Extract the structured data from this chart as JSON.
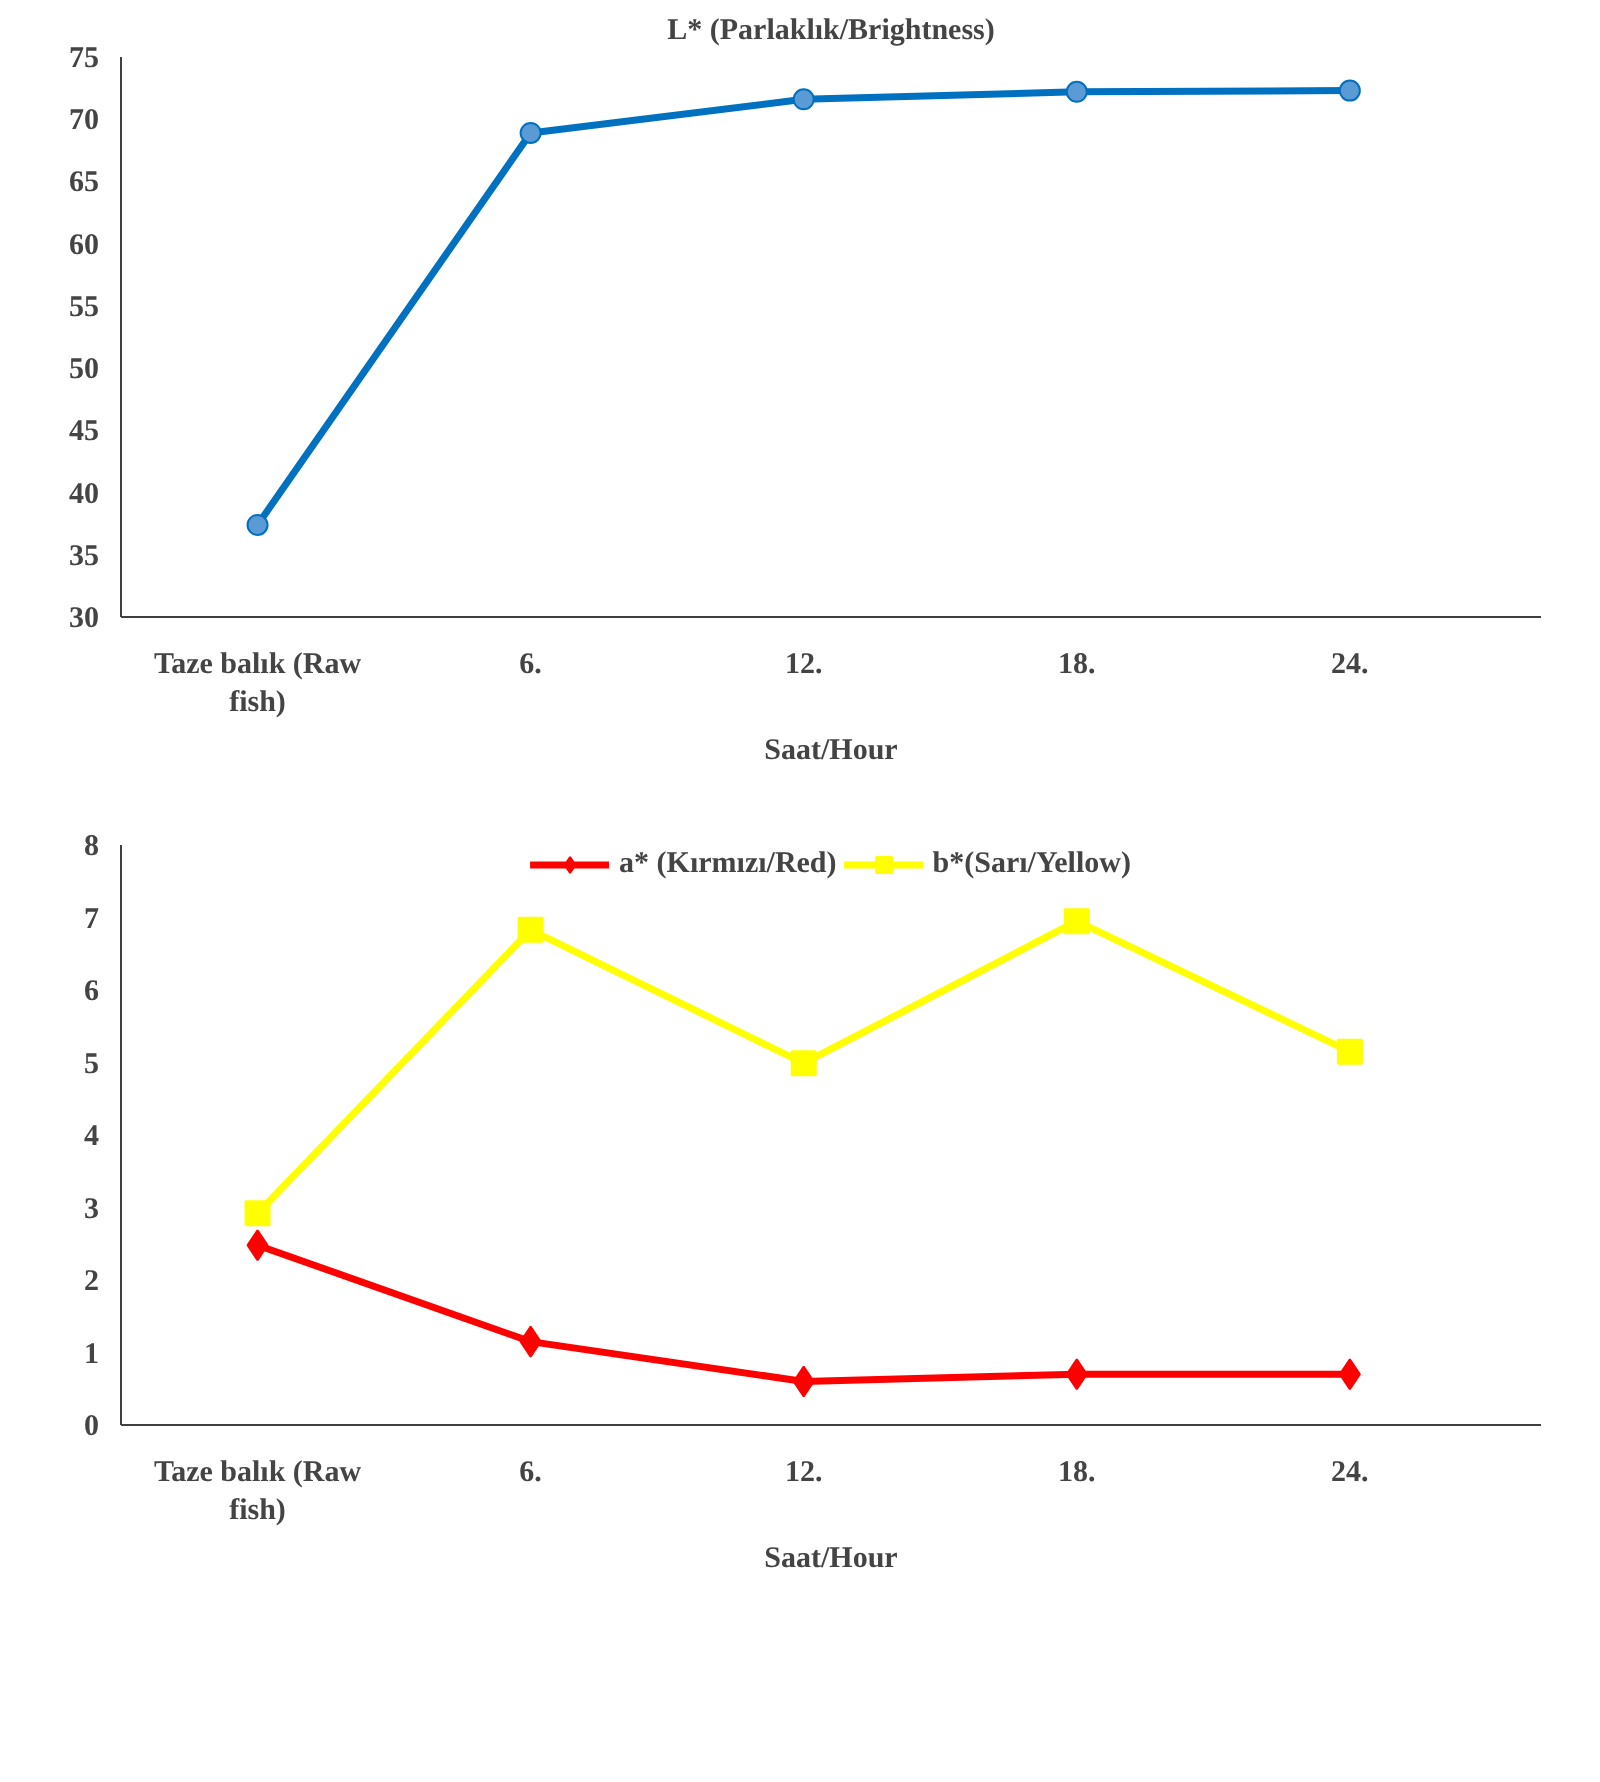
{
  "chart_data": [
    {
      "type": "line",
      "title": "L* (Parlaklık/Brightness)",
      "xlabel": "Saat/Hour",
      "categories": [
        "Taze balık (Raw fish)",
        "6.",
        "12.",
        "18.",
        "24."
      ],
      "ylim": [
        30,
        75
      ],
      "yticks": [
        30,
        35,
        40,
        45,
        50,
        55,
        60,
        65,
        70,
        75
      ],
      "grid": false,
      "legend": false,
      "marker": "circle",
      "series": [
        {
          "color": "#0070c0",
          "values": [
            37.4,
            68.9,
            71.6,
            72.2,
            72.3
          ]
        }
      ]
    },
    {
      "type": "line",
      "xlabel": "Saat/Hour",
      "categories": [
        "Taze balık (Raw fish)",
        "6.",
        "12.",
        "18.",
        "24."
      ],
      "ylim": [
        0,
        8
      ],
      "yticks": [
        0,
        1,
        2,
        3,
        4,
        5,
        6,
        7,
        8
      ],
      "grid": false,
      "legend": "top",
      "series": [
        {
          "name": "a* (Kırmızı/Red)",
          "color": "#ff0000",
          "marker": "diamond",
          "values": [
            2.48,
            1.15,
            0.6,
            0.7,
            0.7
          ]
        },
        {
          "name": "b*(Sarı/Yellow)",
          "color": "#ffff00",
          "marker": "square",
          "values": [
            2.92,
            6.83,
            4.99,
            6.95,
            5.15
          ]
        }
      ]
    }
  ]
}
